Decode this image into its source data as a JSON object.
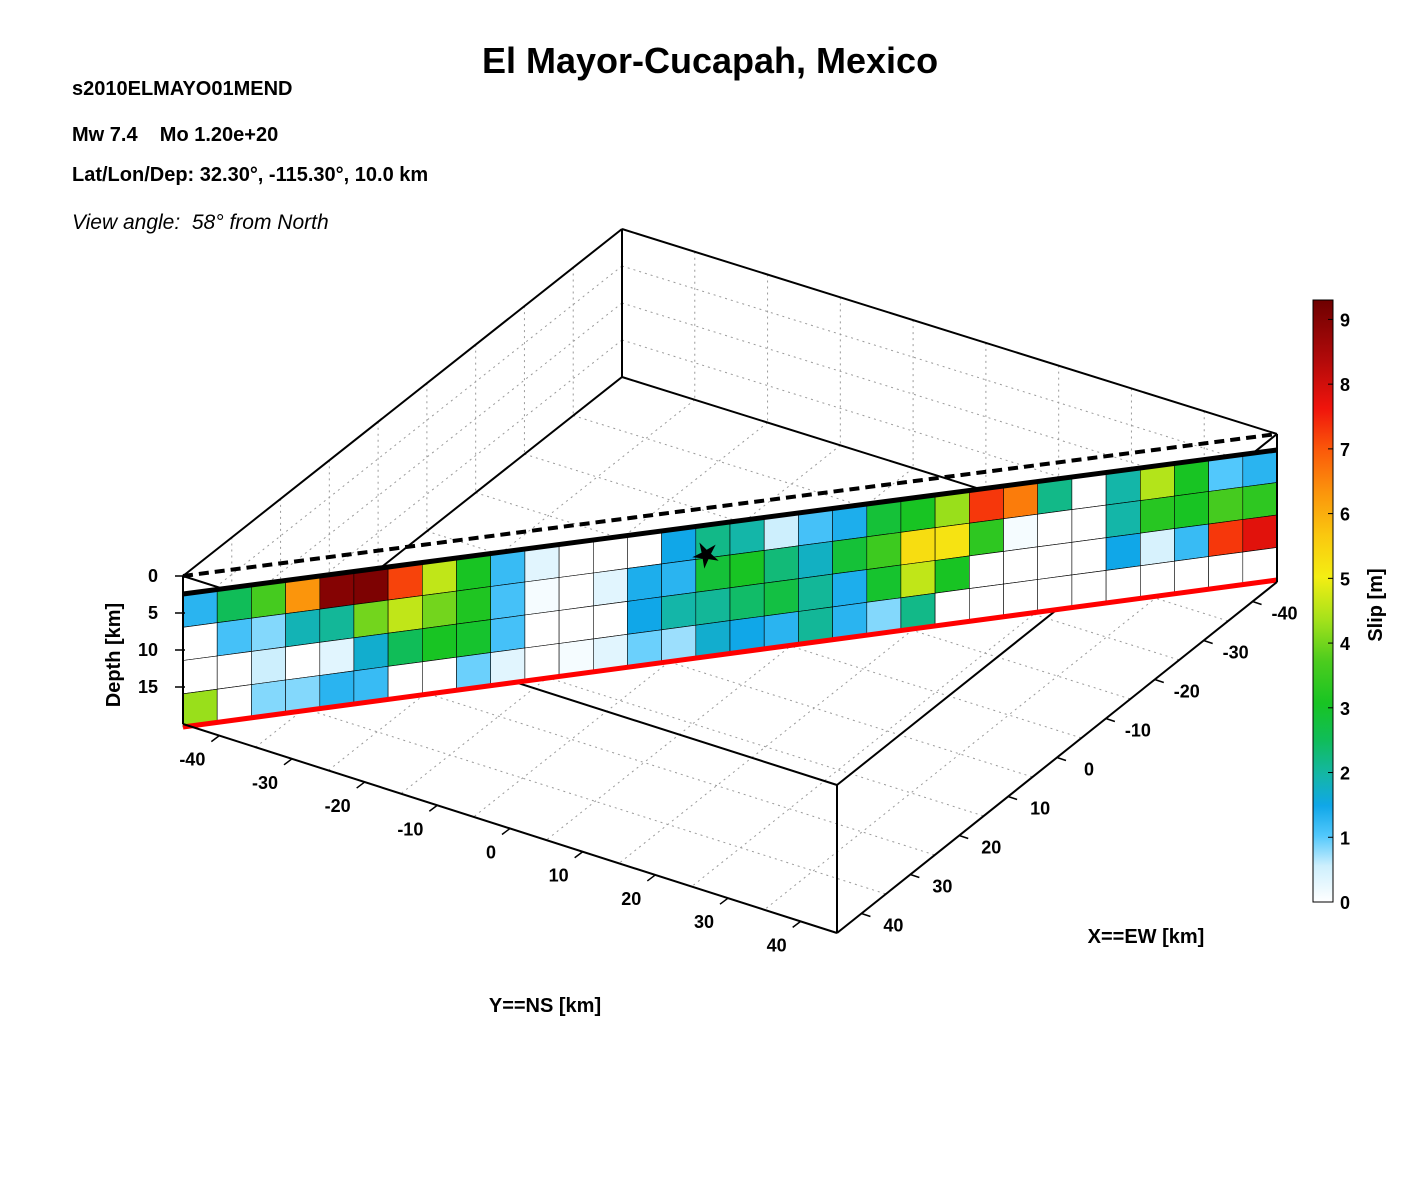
{
  "header": {
    "title": "El Mayor-Cucapah, Mexico",
    "event_id": "s2010ELMAYO01MEND",
    "magnitude_line": "Mw 7.4    Mo 1.20e+20",
    "location_line": "Lat/Lon/Dep: 32.30°, -115.30°, 10.0 km",
    "view_angle_line": "View angle:  58° from North"
  },
  "chart_data": {
    "type": "heatmap",
    "subtype": "3d-fault-slip",
    "title": "El Mayor-Cucapah, Mexico",
    "xlabel": "X==EW [km]",
    "ylabel": "Y==NS [km]",
    "zlabel": "Depth [km]",
    "colorbar_label": "Slip [m]",
    "colorbar_range": [
      0,
      9.3
    ],
    "colorbar_ticks": [
      "0",
      "1",
      "2",
      "3",
      "4",
      "5",
      "6",
      "7",
      "8",
      "9"
    ],
    "x_ticks": [
      "-40",
      "-30",
      "-20",
      "-10",
      "0",
      "10",
      "20",
      "30",
      "40"
    ],
    "y_ticks": [
      "-40",
      "-30",
      "-20",
      "-10",
      "0",
      "10",
      "20",
      "30",
      "40"
    ],
    "depth_ticks": [
      "0",
      "5",
      "10",
      "15"
    ],
    "x_range": [
      -45,
      45
    ],
    "y_range": [
      -45,
      45
    ],
    "depth_range": [
      0,
      20
    ],
    "grid": true,
    "colorbar_position": "right",
    "view_azimuth_deg": 58,
    "hypocenter": {
      "along_strike_index": 15.3,
      "down_dip_index": 0.9
    },
    "slip_grid": [
      [
        1.3,
        2.5,
        3.6,
        6.3,
        9.0,
        9.1,
        7.2,
        4.6,
        3.0,
        1.2,
        0.3,
        0.0,
        0.0,
        0.0,
        1.5,
        2.2,
        2.0,
        0.5,
        1.1,
        1.4,
        2.8,
        3.0,
        4.3,
        7.3,
        6.6,
        2.2,
        0.0,
        2.0,
        4.5,
        3.0,
        1.0,
        1.3
      ],
      [
        0.0,
        1.1,
        0.8,
        1.9,
        2.1,
        4.0,
        4.6,
        4.0,
        3.1,
        1.1,
        0.1,
        0.0,
        0.3,
        1.4,
        1.3,
        2.8,
        3.0,
        2.3,
        1.8,
        2.8,
        3.5,
        5.3,
        5.2,
        3.3,
        0.1,
        0.0,
        0.0,
        2.0,
        3.2,
        3.0,
        3.6,
        3.3
      ],
      [
        0.0,
        0.0,
        0.5,
        0.0,
        0.3,
        1.7,
        2.5,
        3.0,
        2.9,
        1.1,
        0.0,
        0.0,
        0.0,
        1.5,
        2.0,
        2.1,
        2.4,
        2.7,
        2.1,
        1.4,
        2.9,
        4.6,
        3.0,
        0.0,
        0.0,
        0.0,
        0.0,
        1.5,
        0.4,
        1.2,
        7.3,
        7.8
      ],
      [
        4.3,
        0.0,
        0.8,
        0.8,
        1.3,
        1.2,
        0.0,
        0.0,
        0.9,
        0.3,
        0.0,
        0.1,
        0.3,
        0.9,
        0.7,
        1.7,
        1.5,
        1.3,
        2.1,
        1.3,
        0.8,
        2.2,
        0.0,
        0.0,
        0.0,
        0.0,
        0.0,
        0.0,
        0.0,
        0.0,
        0.0,
        0.0
      ]
    ]
  }
}
